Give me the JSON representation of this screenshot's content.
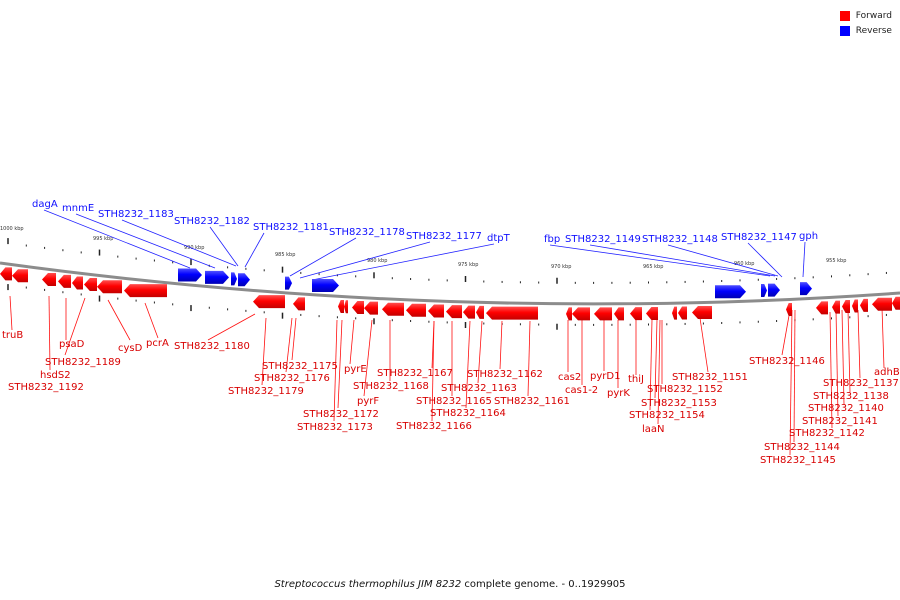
{
  "legend": {
    "forward_label": "Forward",
    "reverse_label": "Reverse",
    "forward_color": "#ff0000",
    "reverse_color": "#0000ff"
  },
  "caption": {
    "organism": "Streptococcus thermophilus JIM 8232",
    "rest": " complete genome. - 0..1929905"
  },
  "axis": {
    "ticks_kbp": [
      "1000 kbp",
      "995 kbp",
      "990 kbp",
      "985 kbp",
      "980 kbp",
      "975 kbp",
      "970 kbp",
      "965 kbp",
      "960 kbp",
      "955 kbp"
    ]
  },
  "labels": {
    "reverse": [
      "dagA",
      "mnmE",
      "STH8232_1183",
      "STH8232_1182",
      "STH8232_1181",
      "STH8232_1178",
      "STH8232_1177",
      "dtpT",
      "fbp",
      "STH8232_1149",
      "STH8232_1148",
      "STH8232_1147",
      "gph"
    ],
    "forward": [
      "truB",
      "hsdS2",
      "STH8232_1192",
      "psaD",
      "STH8232_1189",
      "cysD",
      "pcrA",
      "STH8232_1180",
      "STH8232_1175",
      "STH8232_1176",
      "STH8232_1179",
      "pyrE",
      "pyrF",
      "STH8232_1172",
      "STH8232_1173",
      "STH8232_1168",
      "STH8232_1167",
      "STH8232_1165",
      "STH8232_1164",
      "STH8232_1166",
      "STH8232_1163",
      "STH8232_1162",
      "STH8232_1161",
      "cas2",
      "cas1-2",
      "pyrD1",
      "pyrK",
      "thiJ",
      "STH8232_1152",
      "STH8232_1153",
      "STH8232_1154",
      "laaN",
      "STH8232_1151",
      "STH8232_1146",
      "STH8232_1144",
      "STH8232_1145",
      "STH8232_1142",
      "STH8232_1141",
      "STH8232_1140",
      "STH8232_1138",
      "STH8232_1137",
      "adhB"
    ]
  }
}
